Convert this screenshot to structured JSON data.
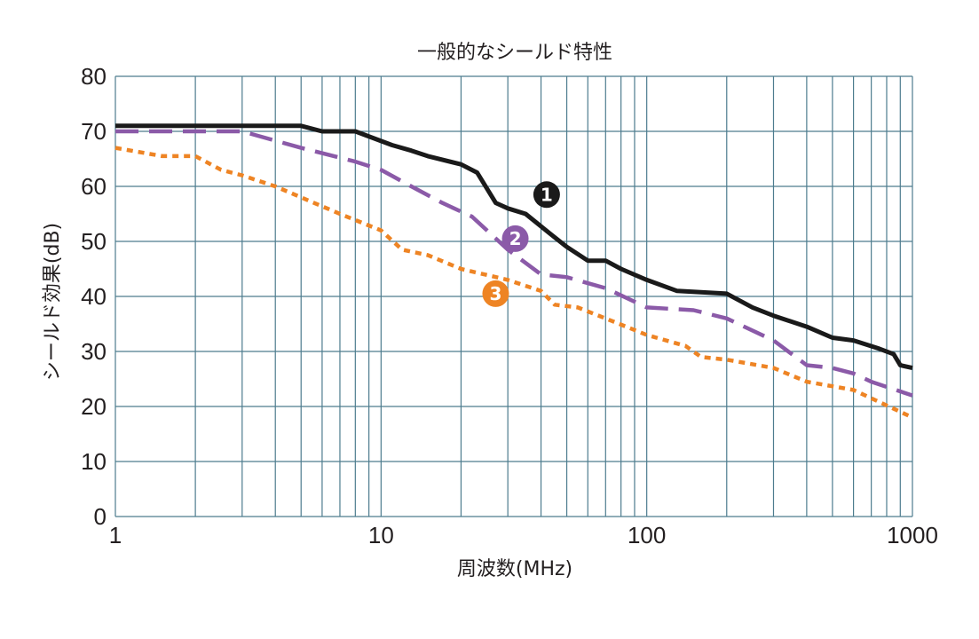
{
  "chart_data": {
    "type": "line",
    "title": "一般的なシールド特性",
    "xlabel": "周波数(MHz)",
    "ylabel": "シールド効果(dB)",
    "x_scale": "log",
    "xlim": [
      1,
      1000
    ],
    "ylim": [
      0,
      80
    ],
    "x_tick_labels": [
      "1",
      "10",
      "100",
      "1000"
    ],
    "y_tick_labels": [
      "0",
      "10",
      "20",
      "30",
      "40",
      "50",
      "60",
      "70",
      "80"
    ],
    "grid": true,
    "series": [
      {
        "marker_label": "❶",
        "color": "#1a1a1a",
        "style": "solid",
        "points": [
          [
            1,
            71
          ],
          [
            5,
            71
          ],
          [
            6,
            70
          ],
          [
            8,
            70
          ],
          [
            11,
            67.5
          ],
          [
            13,
            66.5
          ],
          [
            15,
            65.5
          ],
          [
            20,
            64
          ],
          [
            23,
            62.5
          ],
          [
            27,
            57
          ],
          [
            30,
            56
          ],
          [
            35,
            55
          ],
          [
            43,
            51.5
          ],
          [
            50,
            49
          ],
          [
            60,
            46.5
          ],
          [
            70,
            46.5
          ],
          [
            80,
            45
          ],
          [
            100,
            43
          ],
          [
            130,
            41
          ],
          [
            200,
            40.5
          ],
          [
            250,
            38
          ],
          [
            300,
            36.5
          ],
          [
            400,
            34.5
          ],
          [
            500,
            32.5
          ],
          [
            600,
            32
          ],
          [
            750,
            30.5
          ],
          [
            850,
            29.5
          ],
          [
            900,
            27.5
          ],
          [
            1000,
            27
          ]
        ]
      },
      {
        "marker_label": "❷",
        "color": "#8b5aa8",
        "style": "dashed",
        "points": [
          [
            1,
            70
          ],
          [
            3,
            70
          ],
          [
            5,
            67
          ],
          [
            8,
            64.5
          ],
          [
            10,
            63
          ],
          [
            13,
            60
          ],
          [
            17,
            57
          ],
          [
            22,
            54.5
          ],
          [
            30,
            48.5
          ],
          [
            40,
            44
          ],
          [
            50,
            43.5
          ],
          [
            70,
            41.5
          ],
          [
            100,
            38
          ],
          [
            150,
            37.5
          ],
          [
            200,
            36
          ],
          [
            300,
            32
          ],
          [
            400,
            27.5
          ],
          [
            500,
            27
          ],
          [
            600,
            26
          ],
          [
            700,
            24.5
          ],
          [
            1000,
            22
          ]
        ]
      },
      {
        "marker_label": "❸",
        "color": "#ee8424",
        "style": "dotted",
        "points": [
          [
            1,
            67
          ],
          [
            1.5,
            65.5
          ],
          [
            2,
            65.5
          ],
          [
            2.5,
            63
          ],
          [
            3,
            62
          ],
          [
            4,
            60
          ],
          [
            5,
            58
          ],
          [
            7,
            55
          ],
          [
            10,
            52
          ],
          [
            12,
            48.5
          ],
          [
            15,
            47.5
          ],
          [
            20,
            45
          ],
          [
            30,
            43
          ],
          [
            40,
            41
          ],
          [
            45,
            38.5
          ],
          [
            55,
            38
          ],
          [
            70,
            36
          ],
          [
            100,
            33
          ],
          [
            140,
            31
          ],
          [
            160,
            29
          ],
          [
            200,
            28.5
          ],
          [
            300,
            27
          ],
          [
            400,
            24.5
          ],
          [
            600,
            23
          ],
          [
            700,
            21.5
          ],
          [
            1000,
            18
          ]
        ]
      }
    ]
  }
}
